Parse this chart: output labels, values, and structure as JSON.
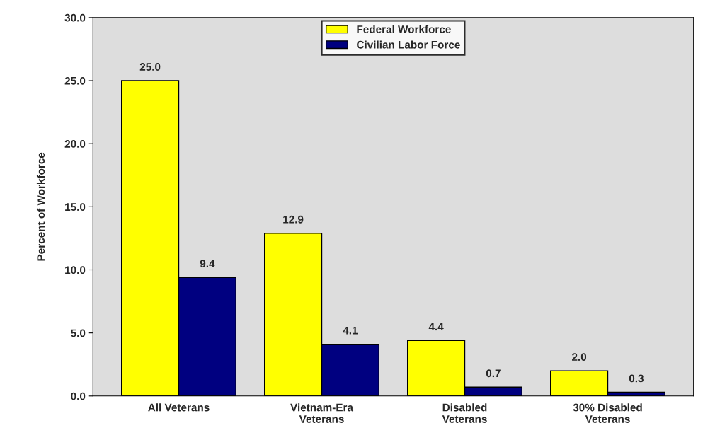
{
  "chart_data": {
    "type": "bar",
    "ylabel": "Percent of Workforce",
    "categories": [
      "All Veterans",
      "Vietnam-Era\nVeterans",
      "Disabled\nVeterans",
      "30% Disabled\nVeterans"
    ],
    "series": [
      {
        "name": "Federal Workforce",
        "color": "#ffff00",
        "values": [
          25.0,
          12.9,
          4.4,
          2.0
        ],
        "value_labels": [
          "25.0",
          "12.9",
          "4.4",
          "2.0"
        ]
      },
      {
        "name": "Civilian Labor Force",
        "color": "#000080",
        "values": [
          9.4,
          4.1,
          0.7,
          0.3
        ],
        "value_labels": [
          "9.4",
          "4.1",
          "0.7",
          "0.3"
        ]
      }
    ],
    "ylim": [
      0,
      30
    ],
    "yticks": [
      {
        "value": 0,
        "label": "0.0"
      },
      {
        "value": 5,
        "label": "5.0"
      },
      {
        "value": 10,
        "label": "10.0"
      },
      {
        "value": 15,
        "label": "15.0"
      },
      {
        "value": 20,
        "label": "20.0"
      },
      {
        "value": 25,
        "label": "25.0"
      },
      {
        "value": 30,
        "label": "30.0"
      }
    ],
    "grid": false,
    "legend": "top"
  }
}
